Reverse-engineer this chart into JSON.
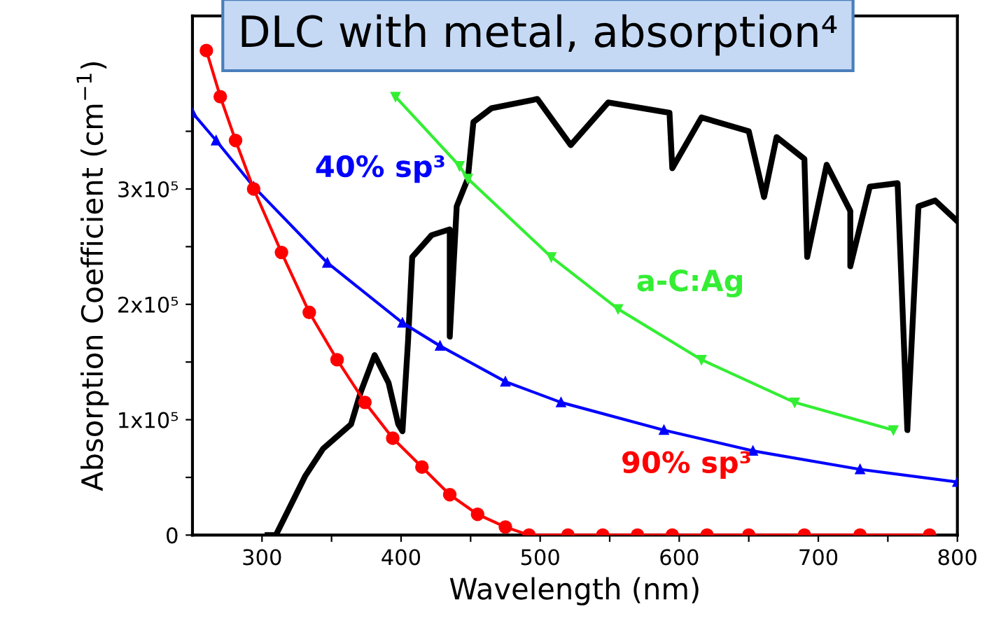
{
  "chart_data": {
    "type": "line",
    "title": "DLC with metal, absorption⁴",
    "xlabel": "Wavelength (nm)",
    "ylabel": "Absorption Coefficient (cm$^{−1}$)",
    "xlim": [
      250,
      800
    ],
    "ylim": [
      0,
      450000
    ],
    "xticks": [
      300,
      {
        "value": 350,
        "label": null
      },
      400,
      {
        "value": 450,
        "label": null
      },
      500,
      {
        "value": 550,
        "label": null
      },
      600,
      {
        "value": 650,
        "label": null
      },
      700,
      {
        "value": 750,
        "label": null
      },
      800
    ],
    "yticks": [
      0,
      {
        "value": 50000,
        "label": null
      },
      {
        "value": 100000,
        "label": "1x10⁵"
      },
      {
        "value": 150000,
        "label": null
      },
      {
        "value": 200000,
        "label": "2x10⁵"
      },
      {
        "value": 250000,
        "label": null
      },
      {
        "value": 300000,
        "label": "3x10⁵"
      },
      {
        "value": 350000,
        "label": null
      }
    ],
    "grid": false,
    "line_style": "solid",
    "series": [
      {
        "name": "90% sp³",
        "color": "#ff0000",
        "marker": "circle",
        "x": [
          260,
          270,
          281,
          294,
          314,
          334,
          354,
          374,
          394,
          415,
          435,
          455,
          475,
          492,
          520,
          545,
          570,
          595,
          620,
          650,
          690,
          730,
          780
        ],
        "values": [
          420000,
          380000,
          342000,
          300000,
          245000,
          193000,
          152000,
          115000,
          84000,
          59000,
          35000,
          18000,
          7000,
          0,
          0,
          0,
          0,
          0,
          0,
          0,
          0,
          0,
          0
        ]
      },
      {
        "name": "40% sp³",
        "color": "#0000ff",
        "marker": "triangle",
        "x": [
          250,
          267,
          294,
          347,
          401,
          428,
          475,
          515,
          589,
          653,
          730,
          800
        ],
        "values": [
          366000,
          342000,
          302000,
          236000,
          184000,
          164000,
          133000,
          115000,
          91000,
          73000,
          57000,
          46000
        ]
      },
      {
        "name": "a-C:Ag",
        "color": "#33ee33",
        "marker": "triangle_down",
        "x": [
          396,
          442,
          448,
          508,
          556,
          616,
          683,
          754
        ],
        "values": [
          380000,
          320000,
          309000,
          241000,
          196000,
          152000,
          115000,
          91000
        ]
      },
      {
        "color": "#000000",
        "marker": "none",
        "x": [
          304,
          310,
          331,
          344,
          364,
          371,
          381,
          391,
          398,
          401,
          405,
          408,
          422,
          435,
          435,
          440,
          448,
          452,
          465,
          498,
          522,
          549,
          593,
          595,
          616,
          650,
          661,
          670,
          690,
          692,
          706,
          723,
          723,
          737,
          757,
          764,
          772,
          784,
          800
        ],
        "values": [
          0,
          0,
          51000,
          75000,
          96000,
          124000,
          156000,
          132000,
          96000,
          90000,
          168000,
          241000,
          260000,
          265000,
          172000,
          285000,
          309000,
          358000,
          370000,
          378000,
          338000,
          375000,
          366000,
          318000,
          362000,
          350000,
          293000,
          345000,
          326000,
          241000,
          321000,
          281000,
          233000,
          302000,
          305000,
          91000,
          285000,
          290000,
          272000
        ]
      }
    ]
  }
}
